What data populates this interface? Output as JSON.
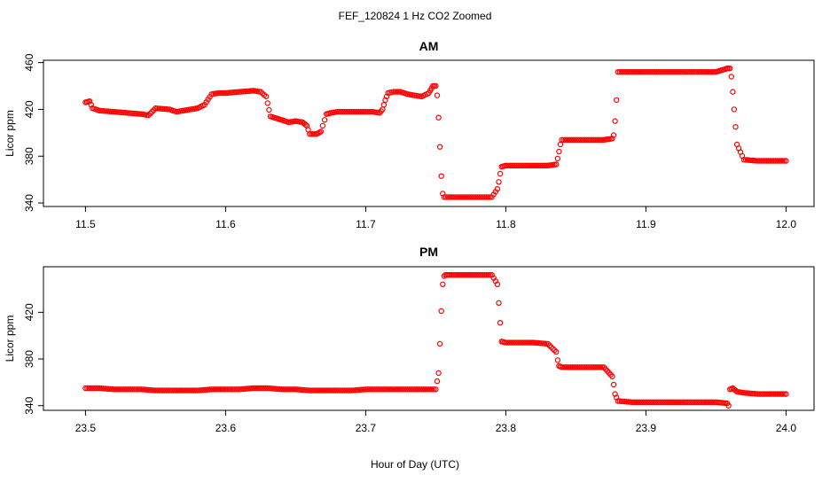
{
  "figure": {
    "title": "FEF_120824  1 Hz CO2 Zoomed",
    "xlabel": "Hour of Day (UTC)"
  },
  "chart_data": [
    {
      "type": "scatter",
      "title": "AM",
      "xlabel": "Hour of Day (UTC)",
      "ylabel": "Licor ppm",
      "xlim": [
        11.47,
        12.02
      ],
      "ylim": [
        337,
        462
      ],
      "xticks": [
        "11.5",
        "11.6",
        "11.7",
        "11.8",
        "11.9",
        "12.0"
      ],
      "yticks": [
        "340",
        "380",
        "420",
        "460"
      ],
      "marker": "open-circle",
      "color": "#ff0000",
      "series": [
        {
          "x": [
            11.5,
            11.503,
            11.505,
            11.51,
            11.52,
            11.53,
            11.54,
            11.545,
            11.55,
            11.56,
            11.565,
            11.57,
            11.575,
            11.58,
            11.585,
            11.59,
            11.595,
            11.6,
            11.61,
            11.62,
            11.625,
            11.629,
            11.632,
            11.64,
            11.645,
            11.65,
            11.655,
            11.658,
            11.66,
            11.665,
            11.668,
            11.672,
            11.675,
            11.68,
            11.69,
            11.7,
            11.705,
            11.71,
            11.712,
            11.714,
            11.716,
            11.72,
            11.725,
            11.73,
            11.735,
            11.74,
            11.745,
            11.748,
            11.75,
            11.751,
            11.752,
            11.753,
            11.754,
            11.755,
            11.756,
            11.76,
            11.77,
            11.78,
            11.79,
            11.794,
            11.795,
            11.796,
            11.797,
            11.8,
            11.81,
            11.82,
            11.83,
            11.836,
            11.837,
            11.838,
            11.839,
            11.84,
            11.85,
            11.86,
            11.87,
            11.876,
            11.877,
            11.878,
            11.879,
            11.88,
            11.89,
            11.9,
            11.91,
            11.92,
            11.93,
            11.94,
            11.95,
            11.958,
            11.96,
            11.961,
            11.962,
            11.963,
            11.964,
            11.965,
            11.97,
            11.98,
            11.99,
            12.0
          ],
          "y": [
            426,
            427,
            421,
            419,
            418,
            417,
            416,
            415,
            421,
            420,
            418,
            419,
            420,
            421,
            424,
            433,
            434,
            434,
            435,
            436,
            435,
            431,
            414,
            411,
            409,
            410,
            409,
            406,
            399,
            399,
            401,
            416,
            417,
            418,
            418,
            418,
            418,
            417,
            420,
            428,
            434,
            435,
            435,
            433,
            432,
            431,
            434,
            440,
            440,
            432,
            413,
            388,
            363,
            348,
            345,
            345,
            345,
            345,
            345,
            352,
            358,
            365,
            371,
            372,
            372,
            372,
            372,
            373,
            378,
            384,
            390,
            394,
            394,
            394,
            394,
            395,
            398,
            410,
            428,
            452,
            452,
            452,
            452,
            452,
            452,
            452,
            452,
            455,
            455,
            448,
            435,
            420,
            405,
            390,
            377,
            376,
            376,
            376
          ]
        }
      ]
    },
    {
      "type": "scatter",
      "title": "PM",
      "xlabel": "Hour of Day (UTC)",
      "ylabel": "Licor ppm",
      "xlim": [
        23.47,
        24.02
      ],
      "ylim": [
        336,
        459
      ],
      "xticks": [
        "23.5",
        "23.6",
        "23.7",
        "23.8",
        "23.9",
        "24.0"
      ],
      "yticks": [
        "340",
        "380",
        "420"
      ],
      "marker": "open-circle",
      "color": "#ff0000",
      "series": [
        {
          "x": [
            23.5,
            23.51,
            23.52,
            23.53,
            23.54,
            23.55,
            23.56,
            23.57,
            23.58,
            23.59,
            23.6,
            23.61,
            23.62,
            23.63,
            23.64,
            23.65,
            23.66,
            23.67,
            23.68,
            23.69,
            23.7,
            23.71,
            23.72,
            23.73,
            23.74,
            23.75,
            23.752,
            23.753,
            23.754,
            23.755,
            23.756,
            23.757,
            23.76,
            23.77,
            23.78,
            23.79,
            23.794,
            23.795,
            23.796,
            23.797,
            23.8,
            23.81,
            23.82,
            23.83,
            23.836,
            23.837,
            23.838,
            23.84,
            23.85,
            23.86,
            23.87,
            23.876,
            23.877,
            23.878,
            23.88,
            23.89,
            23.9,
            23.91,
            23.92,
            23.93,
            23.94,
            23.95,
            23.958,
            23.959,
            23.96,
            23.962,
            23.965,
            23.97,
            23.98,
            23.99,
            24.0
          ],
          "y": [
            355,
            355,
            354,
            354,
            354,
            353,
            353,
            353,
            353,
            354,
            354,
            354,
            355,
            355,
            354,
            354,
            353,
            353,
            353,
            353,
            354,
            354,
            354,
            354,
            354,
            354,
            368,
            393,
            421,
            444,
            451,
            452,
            452,
            452,
            452,
            452,
            444,
            428,
            411,
            395,
            394,
            394,
            394,
            393,
            386,
            379,
            374,
            373,
            373,
            373,
            373,
            365,
            358,
            350,
            344,
            343,
            343,
            343,
            343,
            343,
            343,
            343,
            342,
            340,
            354,
            355,
            352,
            351,
            350,
            350,
            350
          ]
        }
      ]
    }
  ]
}
